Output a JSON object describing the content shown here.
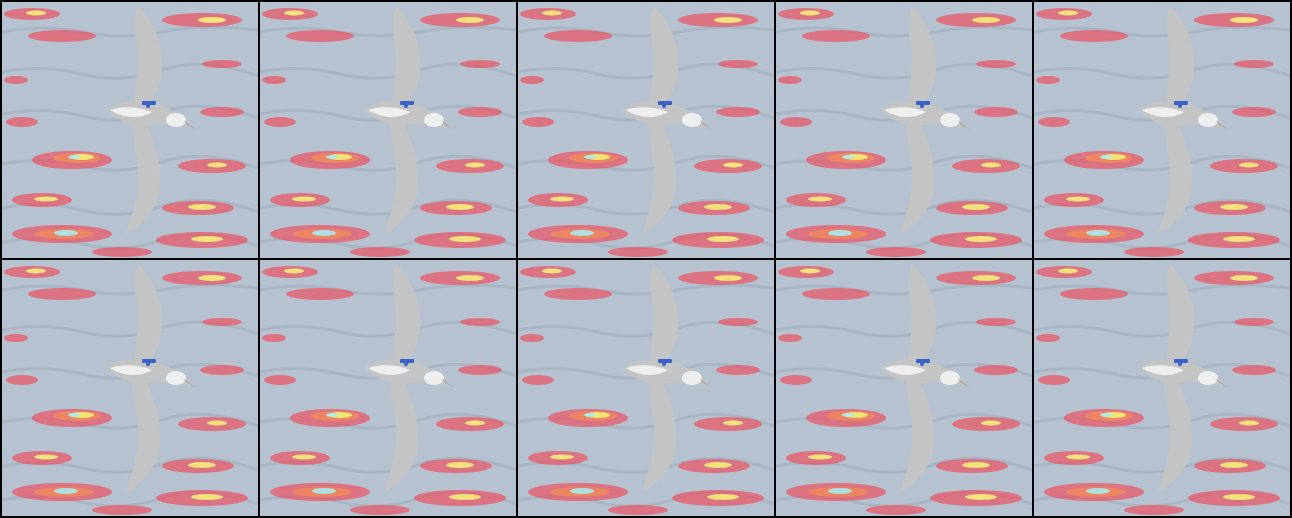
{
  "grid": {
    "rows": 2,
    "columns": 5
  },
  "tiles": [
    {
      "row": 1,
      "col": 1,
      "subject": "albatross-over-ocean"
    },
    {
      "row": 1,
      "col": 2,
      "subject": "albatross-over-ocean"
    },
    {
      "row": 1,
      "col": 3,
      "subject": "albatross-over-ocean"
    },
    {
      "row": 1,
      "col": 4,
      "subject": "albatross-over-ocean"
    },
    {
      "row": 1,
      "col": 5,
      "subject": "albatross-over-ocean"
    },
    {
      "row": 2,
      "col": 1,
      "subject": "albatross-over-ocean"
    },
    {
      "row": 2,
      "col": 2,
      "subject": "albatross-over-ocean"
    },
    {
      "row": 2,
      "col": 3,
      "subject": "albatross-over-ocean"
    },
    {
      "row": 2,
      "col": 4,
      "subject": "albatross-over-ocean"
    },
    {
      "row": 2,
      "col": 5,
      "subject": "albatross-over-ocean"
    }
  ],
  "colors": {
    "sea": "#b6c2cf",
    "sea_dark": "#9eabb9",
    "bird": "#c4c4c4",
    "bird_shadow": "#a9a9a9",
    "belly": "#eeeeee",
    "tag": "#3a62c8",
    "heat_red": "#e8586a",
    "heat_orange": "#f08a5a",
    "heat_yellow": "#f3ee7a",
    "heat_cyan": "#a9eaf0",
    "border": "#000000"
  }
}
